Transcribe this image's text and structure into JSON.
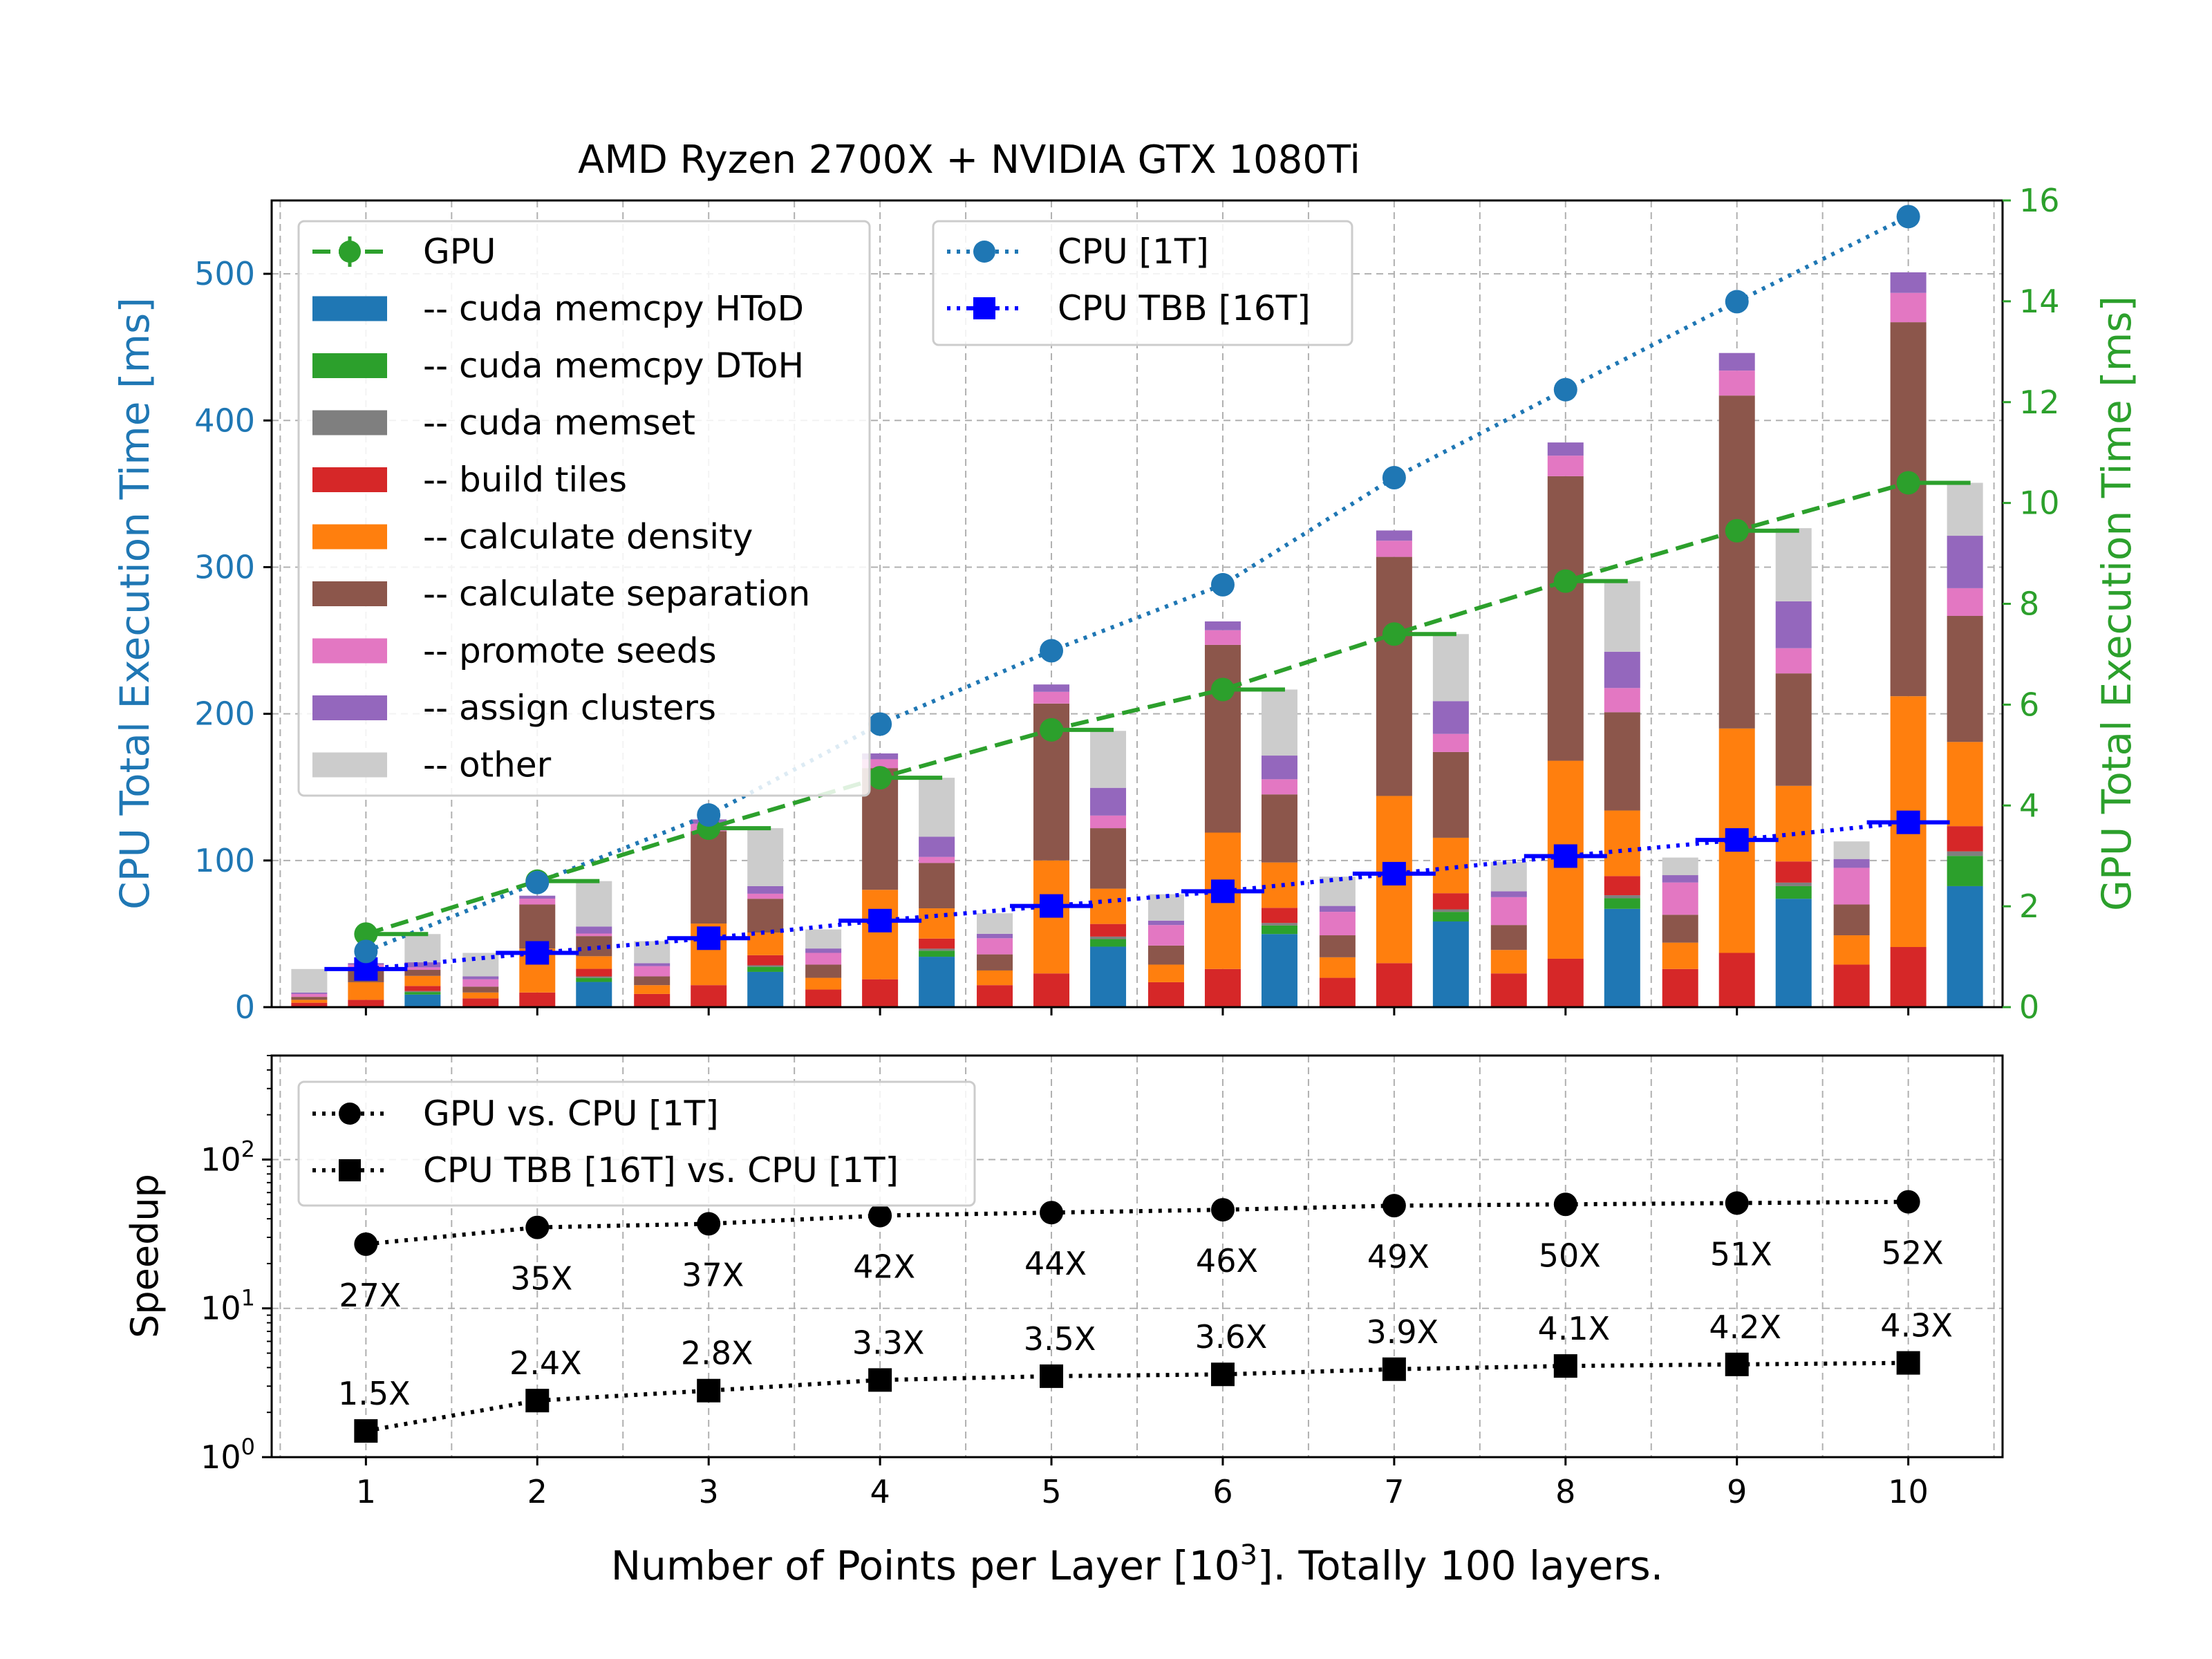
{
  "title": "AMD Ryzen 2700X + NVIDIA GTX 1080Ti",
  "colors": {
    "htod": "#1f77b4",
    "dtoh": "#2ca02c",
    "memset": "#7f7f7f",
    "build_tiles": "#d62728",
    "density": "#ff7f0e",
    "separation": "#8c564b",
    "promote": "#e377c2",
    "assign": "#9467bd",
    "other": "#cccccc",
    "gpu_line": "#2ca02c",
    "cpu1t": "#1f77b4",
    "tbb": "#0000ff",
    "speedup": "#000000"
  },
  "chart_data": [
    {
      "type": "bar",
      "title": "AMD Ryzen 2700X + NVIDIA GTX 1080Ti",
      "xlabel": "Number of Points per Layer [10^3]. Totally 100 layers.",
      "xlabel_parts": [
        "Number of Points per Layer [10",
        "3",
        "]. Totally 100 layers."
      ],
      "ylabel": "CPU Total Execution Time [ms]",
      "y2label": "GPU Total Execution Time [ms]",
      "x": [
        1,
        2,
        3,
        4,
        5,
        6,
        7,
        8,
        9,
        10
      ],
      "x_ticks": [
        "1",
        "2",
        "3",
        "4",
        "5",
        "6",
        "7",
        "8",
        "9",
        "10"
      ],
      "xlim": [
        0.45,
        10.55
      ],
      "ylim": [
        0,
        550
      ],
      "y_ticks": [
        "0",
        "100",
        "200",
        "300",
        "400",
        "500"
      ],
      "y2lim": [
        0,
        16
      ],
      "y2_ticks": [
        "0",
        "2",
        "4",
        "6",
        "8",
        "10",
        "12",
        "14",
        "16"
      ],
      "grid": true,
      "legend_main": [
        {
          "label": "GPU",
          "kind": "line-marker",
          "color": "gpu_line"
        },
        {
          "label": "-- cuda memcpy HToD",
          "kind": "patch",
          "color": "htod"
        },
        {
          "label": "-- cuda memcpy DToH",
          "kind": "patch",
          "color": "dtoh"
        },
        {
          "label": "-- cuda memset",
          "kind": "patch",
          "color": "memset"
        },
        {
          "label": "-- build tiles",
          "kind": "patch",
          "color": "build_tiles"
        },
        {
          "label": "-- calculate density",
          "kind": "patch",
          "color": "density"
        },
        {
          "label": "-- calculate separation",
          "kind": "patch",
          "color": "separation"
        },
        {
          "label": "-- promote seeds",
          "kind": "patch",
          "color": "promote"
        },
        {
          "label": "-- assign clusters",
          "kind": "patch",
          "color": "assign"
        },
        {
          "label": "-- other",
          "kind": "patch",
          "color": "other"
        }
      ],
      "legend_cpu": [
        {
          "label": "CPU [1T]",
          "color": "cpu1t"
        },
        {
          "label": "CPU TBB [16T]",
          "color": "tbb"
        }
      ],
      "cpu_1t_total_ms": [
        38,
        85,
        131,
        193,
        243,
        288,
        361,
        421,
        481,
        539
      ],
      "cpu_tbb_total_ms": [
        26,
        37,
        47,
        59,
        69,
        79,
        91,
        103,
        114,
        126
      ],
      "gpu_total_ms": [
        1.45,
        2.5,
        3.55,
        4.55,
        5.5,
        6.3,
        7.4,
        8.45,
        9.45,
        10.4
      ],
      "cpu_1t_stack_ms": {
        "build_tiles": [
          3,
          6,
          9,
          12,
          15,
          17,
          20,
          23,
          26,
          29
        ],
        "density": [
          2,
          4,
          6,
          8,
          10,
          12,
          14,
          16,
          18,
          20
        ],
        "separation": [
          2,
          4,
          6,
          9,
          11,
          13,
          15,
          17,
          19,
          21
        ],
        "promote": [
          2,
          5,
          7,
          8,
          11,
          14,
          16,
          19,
          22,
          25
        ],
        "assign": [
          1,
          2,
          2,
          3,
          3,
          3,
          4,
          4,
          5,
          6
        ],
        "other": [
          16,
          16,
          15,
          13,
          14,
          18,
          20,
          20,
          12,
          12
        ]
      },
      "cpu_tbb_stack_ms": {
        "build_tiles": [
          5,
          10,
          15,
          19,
          23,
          26,
          30,
          33,
          37,
          41
        ],
        "density": [
          12,
          30,
          42,
          61,
          77,
          93,
          114,
          135,
          153,
          171
        ],
        "separation": [
          10,
          30,
          63,
          83,
          107,
          128,
          163,
          194,
          227,
          255
        ],
        "promote": [
          2,
          4,
          5,
          6,
          8,
          10,
          11,
          14,
          17,
          20
        ],
        "assign": [
          1,
          2,
          3,
          4,
          5,
          6,
          7,
          9,
          12,
          14
        ],
        "other": [
          0,
          0,
          0,
          0,
          0,
          0,
          0,
          0,
          0,
          0
        ]
      },
      "gpu_stack_ms": {
        "htod": [
          0.25,
          0.5,
          0.7,
          1.0,
          1.2,
          1.45,
          1.7,
          1.95,
          2.15,
          2.4
        ],
        "dtoh": [
          0.05,
          0.08,
          0.1,
          0.12,
          0.15,
          0.17,
          0.19,
          0.21,
          0.25,
          0.6
        ],
        "memset": [
          0.02,
          0.03,
          0.03,
          0.04,
          0.05,
          0.05,
          0.05,
          0.06,
          0.07,
          0.09
        ],
        "build_tiles": [
          0.1,
          0.15,
          0.2,
          0.2,
          0.25,
          0.3,
          0.32,
          0.38,
          0.42,
          0.5
        ],
        "density": [
          0.2,
          0.25,
          0.45,
          0.6,
          0.7,
          0.9,
          1.1,
          1.3,
          1.5,
          1.67
        ],
        "separation": [
          0.12,
          0.4,
          0.67,
          0.9,
          1.2,
          1.35,
          1.7,
          1.95,
          2.23,
          2.5
        ],
        "promote": [
          0.05,
          0.05,
          0.1,
          0.12,
          0.25,
          0.3,
          0.36,
          0.48,
          0.5,
          0.55
        ],
        "assign": [
          0.1,
          0.14,
          0.15,
          0.4,
          0.55,
          0.47,
          0.65,
          0.72,
          0.93,
          1.04
        ],
        "other": [
          0.56,
          0.9,
          1.15,
          1.17,
          1.13,
          1.31,
          1.33,
          1.4,
          1.45,
          1.05
        ]
      }
    },
    {
      "type": "line",
      "ylabel": "Speedup",
      "yscale": "log",
      "ylim": [
        1,
        500
      ],
      "y_ticks": [
        {
          "value": 1,
          "base": "10",
          "exp": "0"
        },
        {
          "value": 10,
          "base": "10",
          "exp": "1"
        },
        {
          "value": 100,
          "base": "10",
          "exp": "2"
        }
      ],
      "x": [
        1,
        2,
        3,
        4,
        5,
        6,
        7,
        8,
        9,
        10
      ],
      "series": [
        {
          "name": "GPU vs. CPU [1T]",
          "marker": "circle",
          "values": [
            27,
            35,
            37,
            42,
            44,
            46,
            49,
            50,
            51,
            52
          ],
          "labels": [
            "27X",
            "35X",
            "37X",
            "42X",
            "44X",
            "46X",
            "49X",
            "50X",
            "51X",
            "52X"
          ]
        },
        {
          "name": "CPU TBB [16T] vs. CPU [1T]",
          "marker": "square",
          "values": [
            1.5,
            2.4,
            2.8,
            3.3,
            3.5,
            3.6,
            3.9,
            4.1,
            4.2,
            4.3
          ],
          "labels": [
            "1.5X",
            "2.4X",
            "2.8X",
            "3.3X",
            "3.5X",
            "3.6X",
            "3.9X",
            "4.1X",
            "4.2X",
            "4.3X"
          ]
        }
      ]
    }
  ]
}
